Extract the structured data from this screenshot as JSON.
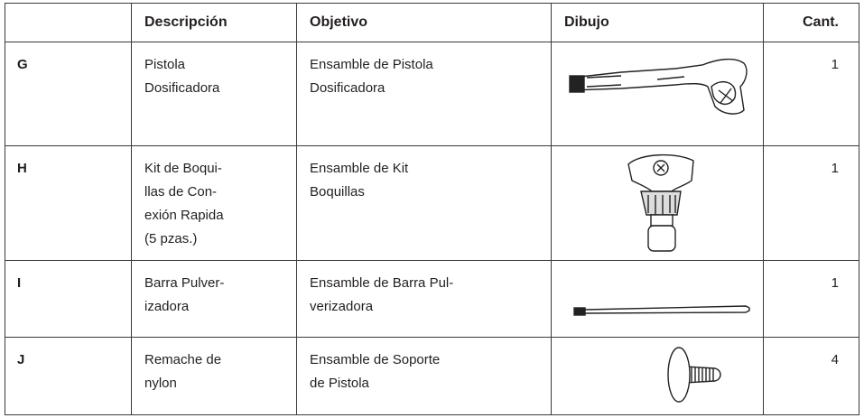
{
  "table": {
    "header": [
      "Descripción",
      "Objetivo",
      "Dibujo",
      "Cant."
    ],
    "rows": [
      {
        "id": "G",
        "description": [
          "Pistola",
          "Dosificadora"
        ],
        "objective": [
          "Ensamble de Pistola",
          "Dosificadora"
        ],
        "quantity": 1
      },
      {
        "id": "H",
        "description": [
          "Kit de Boqui-",
          "llas de Con-",
          "exión Rapida",
          "(5 pzas.)"
        ],
        "objective": [
          "Ensamble de Kit",
          "Boquillas"
        ],
        "quantity": 1
      },
      {
        "id": "I",
        "description": [
          "Barra Pulver-",
          "izadora"
        ],
        "objective": [
          "Ensamble de Barra Pul-",
          "verizadora"
        ],
        "quantity": 1
      },
      {
        "id": "J",
        "description": [
          "Remache de",
          "nylon"
        ],
        "objective": [
          "Ensamble de Soporte",
          "de Pistola"
        ],
        "quantity": 4
      }
    ]
  }
}
